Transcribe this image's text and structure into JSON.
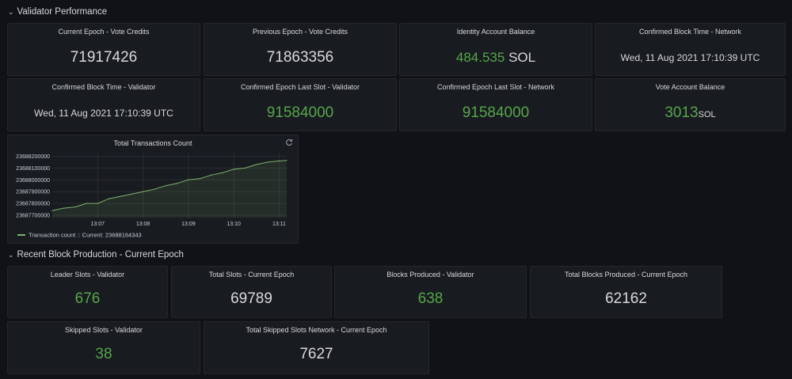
{
  "sections": {
    "validator": {
      "title": "Validator Performance"
    },
    "production": {
      "title": "Recent Block Production - Current Epoch"
    }
  },
  "panels": {
    "current_vote_credits": {
      "title": "Current Epoch - Vote Credits",
      "value": "71917426"
    },
    "prev_vote_credits": {
      "title": "Previous Epoch - Vote Credits",
      "value": "71863356"
    },
    "identity_balance": {
      "title": "Identity Account Balance",
      "value": "484.535",
      "unit": "SOL"
    },
    "block_time_network": {
      "title": "Confirmed Block Time - Network",
      "value": "Wed, 11 Aug 2021 17:10:39 UTC"
    },
    "block_time_validator": {
      "title": "Confirmed Block Time - Validator",
      "value": "Wed, 11 Aug 2021 17:10:39 UTC"
    },
    "last_slot_validator": {
      "title": "Confirmed Epoch Last Slot - Validator",
      "value": "91584000"
    },
    "last_slot_network": {
      "title": "Confirmed Epoch Last Slot - Network",
      "value": "91584000"
    },
    "vote_balance": {
      "title": "Vote Account Balance",
      "value": "3013",
      "unit": "SOL"
    },
    "leader_slots": {
      "title": "Leader Slots - Validator",
      "value": "676"
    },
    "total_slots": {
      "title": "Total Slots - Current Epoch",
      "value": "69789"
    },
    "blocks_produced": {
      "title": "Blocks Produced - Validator",
      "value": "638"
    },
    "total_blocks": {
      "title": "Total Blocks Produced - Current Epoch",
      "value": "62162"
    },
    "skipped_slots": {
      "title": "Skipped Slots - Validator",
      "value": "38"
    },
    "total_skipped": {
      "title": "Total Skipped Slots Network - Current Epoch",
      "value": "7627"
    }
  },
  "colors": {
    "green": "#56a64b",
    "text": "#d8d9da",
    "panel_bg": "#181b1f",
    "page_bg": "#111217"
  },
  "chart_data": {
    "type": "area",
    "title": "Total Transactions Count",
    "x_ticks": [
      "13:07",
      "13:08",
      "13:09",
      "13:10",
      "13:11"
    ],
    "y_ticks": [
      "23687700000",
      "23687800000",
      "23687900000",
      "23688000000",
      "23688100000",
      "23688200000"
    ],
    "ylim": [
      23687680000,
      23688230000
    ],
    "xlim": [
      "13:06:00",
      "13:11:10"
    ],
    "series": [
      {
        "name": "Transaction count",
        "color": "#7eb26d",
        "x": [
          "13:06:00",
          "13:06:15",
          "13:06:30",
          "13:06:45",
          "13:07:00",
          "13:07:15",
          "13:07:30",
          "13:07:45",
          "13:08:00",
          "13:08:15",
          "13:08:30",
          "13:08:45",
          "13:09:00",
          "13:09:15",
          "13:09:30",
          "13:09:45",
          "13:10:00",
          "13:10:15",
          "13:10:30",
          "13:10:45",
          "13:11:00",
          "13:11:10"
        ],
        "values": [
          23687740000,
          23687760000,
          23687770000,
          23687800000,
          23687800000,
          23687840000,
          23687860000,
          23687880000,
          23687900000,
          23687920000,
          23687950000,
          23687970000,
          23688000000,
          23688010000,
          23688040000,
          23688060000,
          23688090000,
          23688100000,
          23688130000,
          23688150000,
          23688160000,
          23688164343
        ]
      }
    ],
    "legend": {
      "placement": "bottom-left",
      "text": "Transaction count ::  Current: 23688164343"
    },
    "grid": true
  }
}
